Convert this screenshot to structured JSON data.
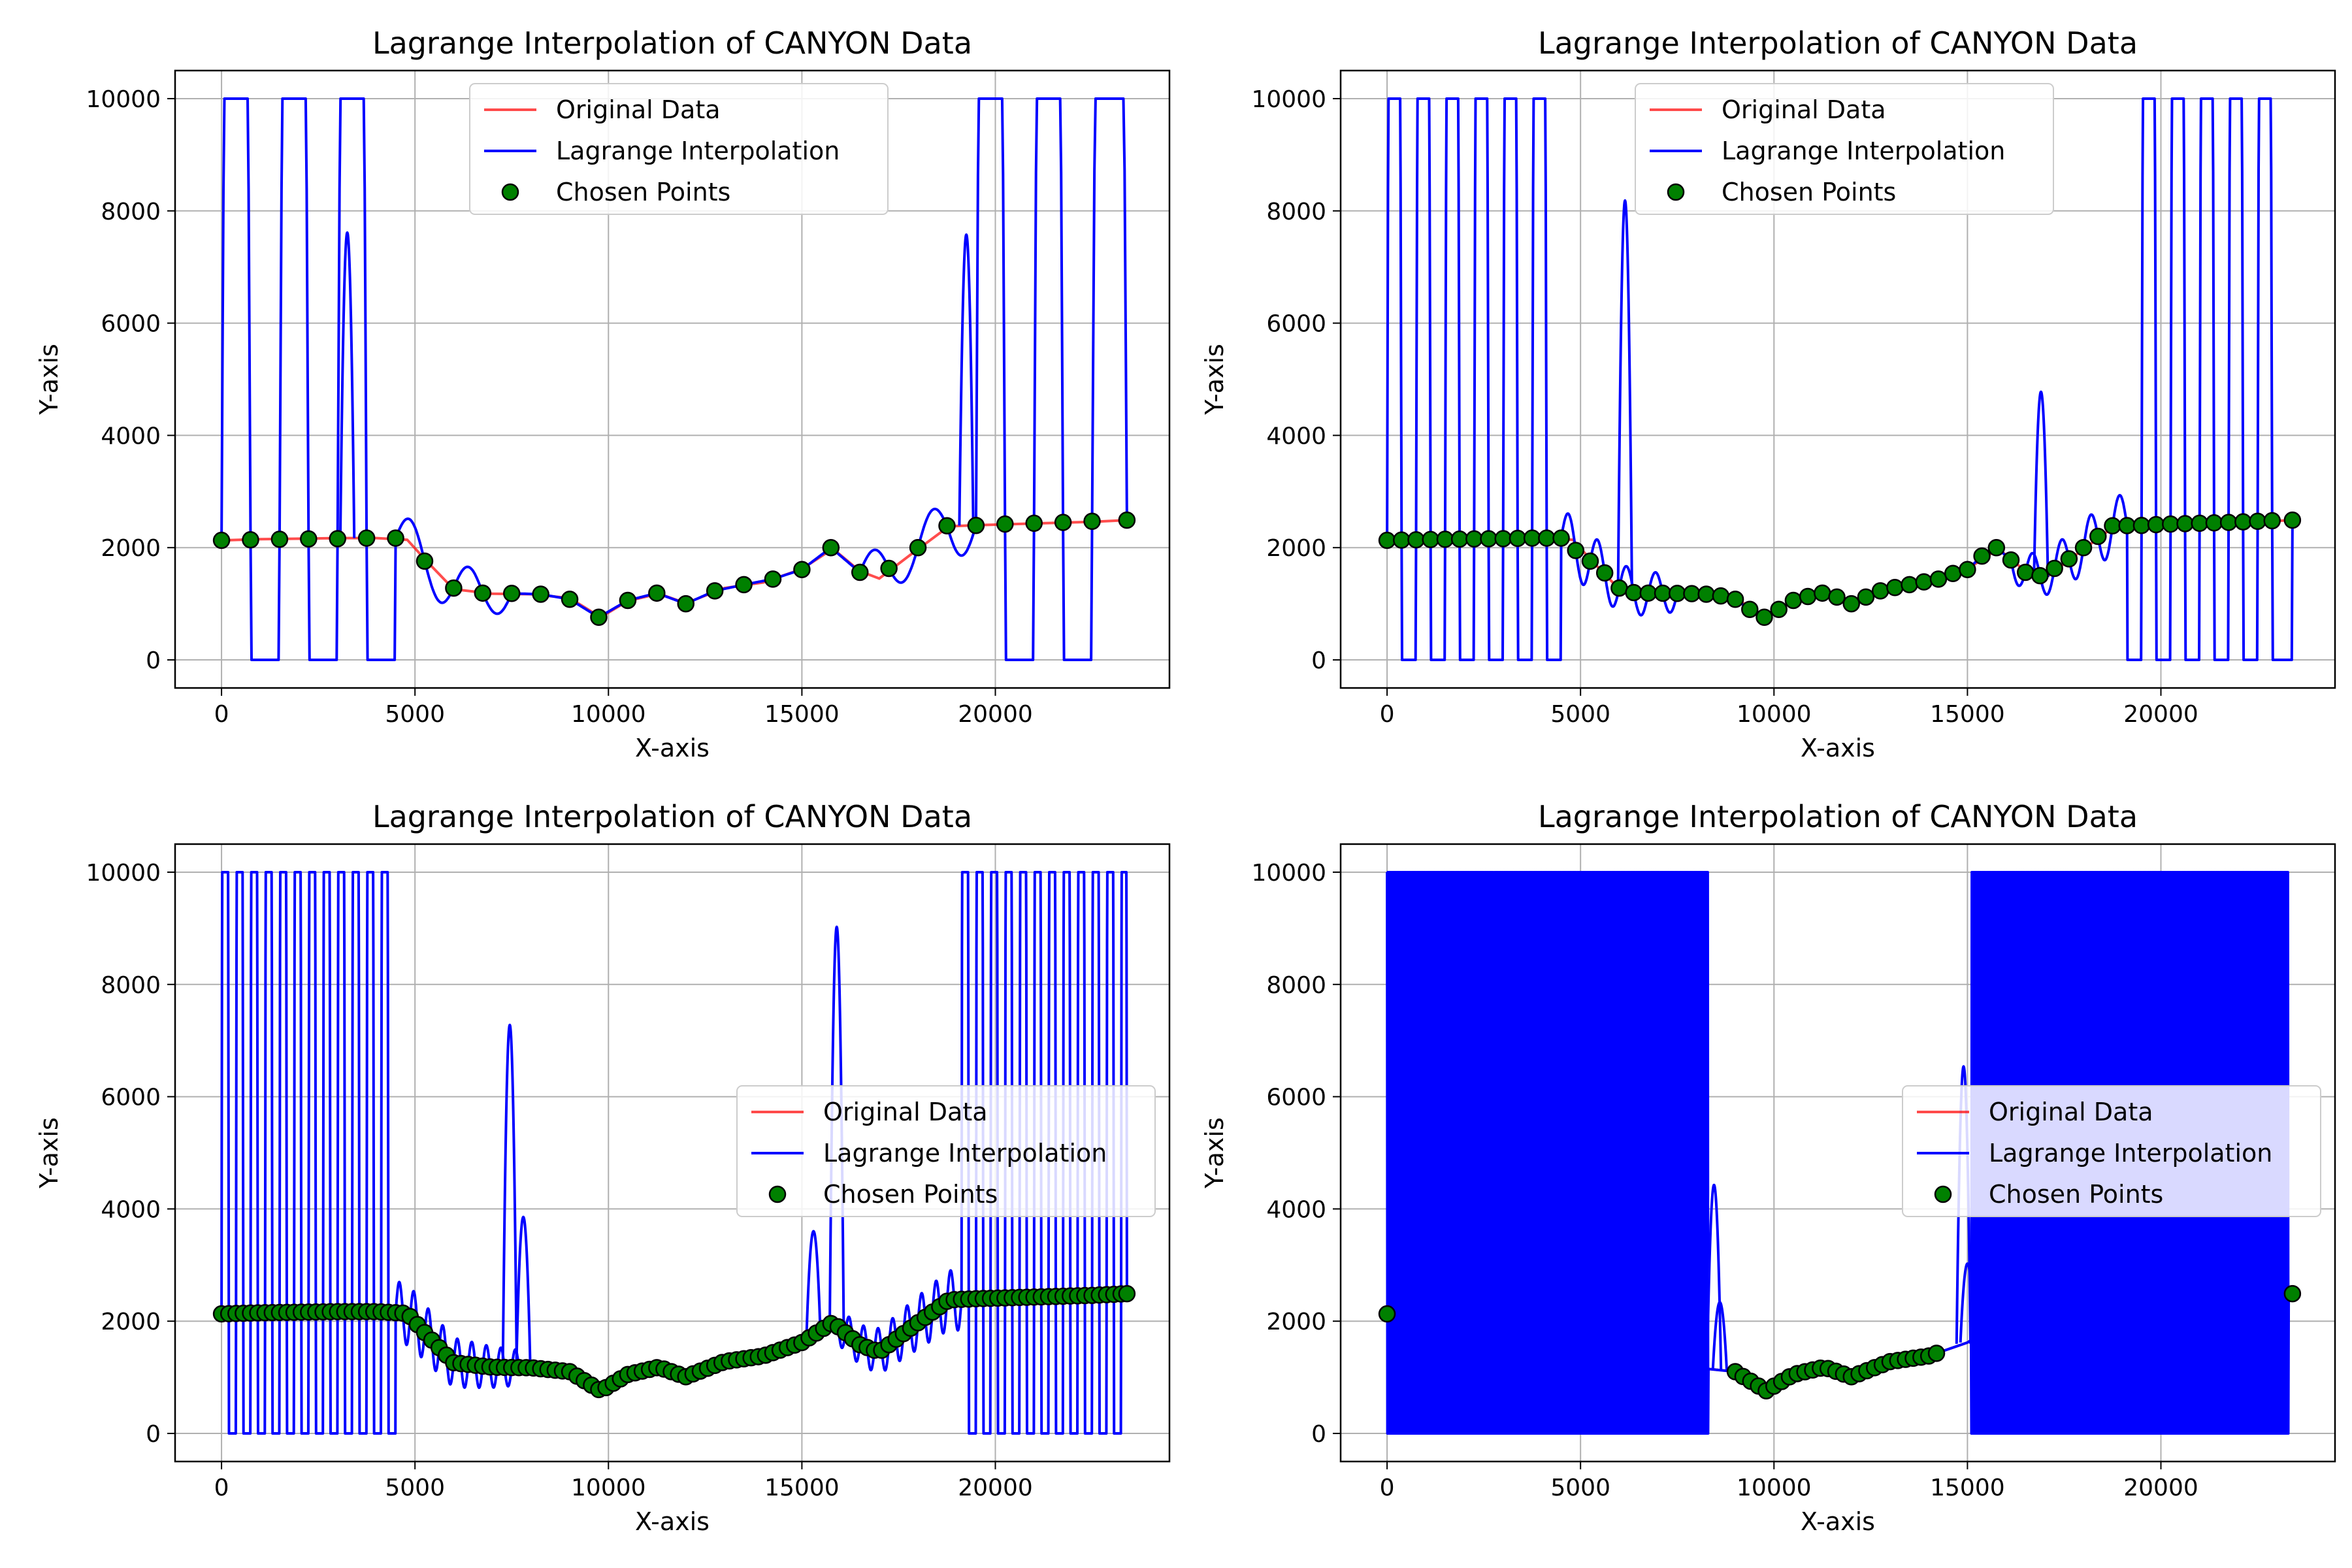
{
  "colors": {
    "original": "#ff0000",
    "lagrange": "#0000ff",
    "points_fill": "#008000",
    "points_edge": "#000000",
    "grid": "#b0b0b0"
  },
  "chart_data": [
    {
      "type": "line",
      "title": "Lagrange Interpolation of CANYON Data",
      "xlabel": "X-axis",
      "ylabel": "Y-axis",
      "xlim": [
        -1200,
        24500
      ],
      "ylim": [
        -500,
        10500
      ],
      "xticks": [
        0,
        5000,
        10000,
        15000,
        20000
      ],
      "yticks": [
        0,
        2000,
        4000,
        6000,
        8000,
        10000
      ],
      "grid": true,
      "legend_position": "top-center",
      "series": [
        {
          "name": "Original Data"
        },
        {
          "name": "Lagrange Interpolation"
        },
        {
          "name": "Chosen Points"
        }
      ],
      "original_x": [
        0,
        1000,
        2000,
        3000,
        4000,
        4800,
        5300,
        6000,
        7000,
        8000,
        9000,
        9800,
        10500,
        11300,
        12000,
        13000,
        14000,
        15000,
        15800,
        16500,
        17000,
        17800,
        18800,
        19500,
        20500,
        21500,
        22500,
        23400
      ],
      "original_y": [
        2130,
        2150,
        2160,
        2170,
        2170,
        2140,
        1760,
        1260,
        1180,
        1170,
        1100,
        760,
        1050,
        1180,
        1010,
        1280,
        1380,
        1620,
        1980,
        1580,
        1450,
        1870,
        2380,
        2400,
        2420,
        2440,
        2460,
        2490
      ],
      "chosen_points_x": [
        0,
        750,
        1500,
        2250,
        3000,
        3750,
        4500,
        5250,
        6000,
        6750,
        7500,
        8250,
        9000,
        9750,
        10500,
        11250,
        12000,
        12750,
        13500,
        14250,
        15000,
        15750,
        16500,
        17250,
        18000,
        18750,
        19500,
        20250,
        21000,
        21750,
        22500,
        23400
      ],
      "chosen_points_y": [
        2130,
        2140,
        2150,
        2155,
        2160,
        2170,
        2170,
        1760,
        1280,
        1190,
        1185,
        1170,
        1080,
        760,
        1060,
        1190,
        1000,
        1230,
        1340,
        1440,
        1610,
        2000,
        1560,
        1630,
        2000,
        2390,
        2395,
        2420,
        2435,
        2450,
        2470,
        2490
      ],
      "interpolation_y_min": 0,
      "interpolation_y_max": 10000,
      "spike_peaks": [
        {
          "x": 3250,
          "y": 7900
        },
        {
          "x": 19250,
          "y": 7850
        }
      ]
    },
    {
      "type": "line",
      "title": "Lagrange Interpolation of CANYON Data",
      "xlabel": "X-axis",
      "ylabel": "Y-axis",
      "xlim": [
        -1200,
        24500
      ],
      "ylim": [
        -500,
        10500
      ],
      "xticks": [
        0,
        5000,
        10000,
        15000,
        20000
      ],
      "yticks": [
        0,
        2000,
        4000,
        6000,
        8000,
        10000
      ],
      "grid": true,
      "legend_position": "top-center",
      "series": [
        {
          "name": "Original Data"
        },
        {
          "name": "Lagrange Interpolation"
        },
        {
          "name": "Chosen Points"
        }
      ],
      "original_x": [
        0,
        1000,
        2000,
        3000,
        4000,
        4800,
        5300,
        6000,
        7000,
        8000,
        9000,
        9800,
        10500,
        11300,
        12000,
        13000,
        14000,
        15000,
        15800,
        16500,
        17000,
        17800,
        18800,
        19500,
        20500,
        21500,
        22500,
        23400
      ],
      "original_y": [
        2130,
        2150,
        2160,
        2170,
        2170,
        2140,
        1760,
        1260,
        1180,
        1170,
        1100,
        760,
        1050,
        1180,
        1010,
        1280,
        1380,
        1620,
        1980,
        1580,
        1450,
        1870,
        2380,
        2400,
        2420,
        2440,
        2460,
        2490
      ],
      "chosen_points_x": [
        0,
        375,
        750,
        1125,
        1500,
        1875,
        2250,
        2625,
        3000,
        3375,
        3750,
        4125,
        4500,
        4875,
        5250,
        5625,
        6000,
        6375,
        6750,
        7125,
        7500,
        7875,
        8250,
        8625,
        9000,
        9375,
        9750,
        10125,
        10500,
        10875,
        11250,
        11625,
        12000,
        12375,
        12750,
        13125,
        13500,
        13875,
        14250,
        14625,
        15000,
        15375,
        15750,
        16125,
        16500,
        16875,
        17250,
        17625,
        18000,
        18375,
        18750,
        19125,
        19500,
        19875,
        20250,
        20625,
        21000,
        21375,
        21750,
        22125,
        22500,
        22875,
        23400
      ],
      "chosen_points_y": [
        2130,
        2135,
        2140,
        2145,
        2150,
        2152,
        2155,
        2158,
        2160,
        2165,
        2170,
        2170,
        2170,
        1950,
        1760,
        1550,
        1280,
        1200,
        1190,
        1188,
        1185,
        1180,
        1170,
        1140,
        1080,
        900,
        760,
        900,
        1060,
        1130,
        1190,
        1120,
        1000,
        1120,
        1230,
        1290,
        1340,
        1390,
        1440,
        1540,
        1610,
        1850,
        2000,
        1780,
        1560,
        1500,
        1630,
        1800,
        2000,
        2200,
        2390,
        2392,
        2395,
        2410,
        2420,
        2428,
        2435,
        2442,
        2450,
        2460,
        2470,
        2480,
        2490
      ],
      "interpolation_y_min": 0,
      "interpolation_y_max": 10000,
      "spike_peaks": [
        {
          "x": 6150,
          "y": 8550
        },
        {
          "x": 16900,
          "y": 4950
        }
      ]
    },
    {
      "type": "line",
      "title": "Lagrange Interpolation of CANYON Data",
      "xlabel": "X-axis",
      "ylabel": "Y-axis",
      "xlim": [
        -1200,
        24500
      ],
      "ylim": [
        -500,
        10500
      ],
      "xticks": [
        0,
        5000,
        10000,
        15000,
        20000
      ],
      "yticks": [
        0,
        2000,
        4000,
        6000,
        8000,
        10000
      ],
      "grid": true,
      "legend_position": "center-right",
      "series": [
        {
          "name": "Original Data"
        },
        {
          "name": "Lagrange Interpolation"
        },
        {
          "name": "Chosen Points"
        }
      ],
      "original_x": [
        0,
        1000,
        2000,
        3000,
        4000,
        4800,
        5300,
        6000,
        7000,
        8000,
        9000,
        9800,
        10500,
        11300,
        12000,
        13000,
        14000,
        15000,
        15800,
        16500,
        17000,
        17800,
        18800,
        19500,
        20500,
        21500,
        22500,
        23400
      ],
      "original_y": [
        2130,
        2150,
        2160,
        2170,
        2170,
        2140,
        1760,
        1260,
        1180,
        1170,
        1100,
        760,
        1050,
        1180,
        1010,
        1280,
        1380,
        1620,
        1980,
        1580,
        1450,
        1870,
        2380,
        2400,
        2420,
        2440,
        2460,
        2490
      ],
      "chosen_points_step": 187.5,
      "chosen_points_last_x": 23400,
      "interpolation_y_min": 0,
      "interpolation_y_max": 10000,
      "spike_peaks": [
        {
          "x": 7450,
          "y": 7600
        },
        {
          "x": 7800,
          "y": 4000
        },
        {
          "x": 15300,
          "y": 3700
        },
        {
          "x": 15900,
          "y": 9400
        }
      ]
    },
    {
      "type": "line",
      "title": "Lagrange Interpolation of CANYON Data",
      "xlabel": "X-axis",
      "ylabel": "Y-axis",
      "xlim": [
        -1200,
        24500
      ],
      "ylim": [
        -500,
        10500
      ],
      "xticks": [
        0,
        5000,
        10000,
        15000,
        20000
      ],
      "yticks": [
        0,
        2000,
        4000,
        6000,
        8000,
        10000
      ],
      "grid": true,
      "legend_position": "center-right",
      "series": [
        {
          "name": "Original Data"
        },
        {
          "name": "Lagrange Interpolation"
        },
        {
          "name": "Chosen Points"
        }
      ],
      "original_x": [
        0,
        1000,
        2000,
        3000,
        4000,
        4800,
        5300,
        6000,
        7000,
        8000,
        9000,
        9800,
        10500,
        11300,
        12000,
        13000,
        14000,
        15000,
        15800,
        16500,
        17000,
        17800,
        18800,
        19500,
        20500,
        21500,
        22500,
        23400
      ],
      "original_y": [
        2130,
        2150,
        2160,
        2170,
        2170,
        2140,
        1760,
        1260,
        1180,
        1170,
        1100,
        760,
        1050,
        1180,
        1010,
        1280,
        1380,
        1620,
        1980,
        1580,
        1450,
        1870,
        2380,
        2400,
        2420,
        2440,
        2460,
        2490
      ],
      "chosen_points_visible_x": [
        0,
        9000,
        9200,
        9400,
        9600,
        9800,
        10000,
        10200,
        10400,
        10600,
        10800,
        11000,
        11200,
        11400,
        11600,
        11800,
        12000,
        12200,
        12400,
        12600,
        12800,
        13000,
        13200,
        13400,
        13600,
        13800,
        14000,
        14200,
        23400
      ],
      "interpolation_y_min": 0,
      "interpolation_y_max": 10000,
      "dense_oscillation_ranges": [
        {
          "from": 0,
          "to": 8300
        },
        {
          "from": 15100,
          "to": 23300
        }
      ],
      "spike_peaks": [
        {
          "x": 8450,
          "y": 4600
        },
        {
          "x": 8600,
          "y": 2400
        },
        {
          "x": 14900,
          "y": 6800
        },
        {
          "x": 15000,
          "y": 3100
        }
      ]
    }
  ]
}
